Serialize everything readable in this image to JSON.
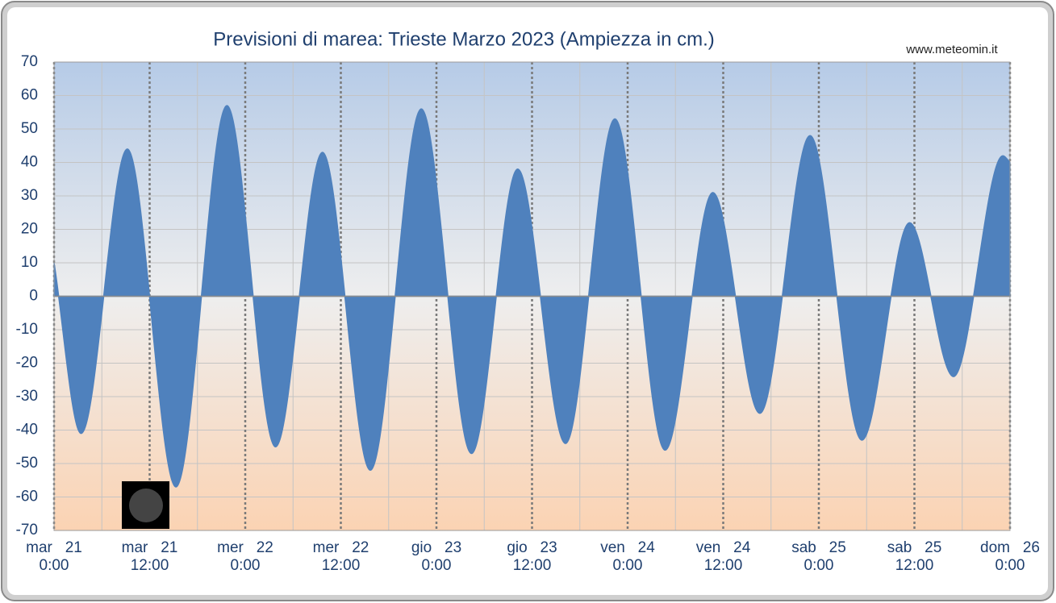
{
  "chart_data": {
    "type": "area",
    "title": "Previsioni di marea: Trieste Marzo 2023 (Ampiezza in cm.)",
    "source": "www.meteomin.it",
    "x": [
      0,
      3.4,
      9.2,
      15.3,
      21.7,
      27.8,
      33.7,
      39.7,
      46.1,
      52.4,
      58.2,
      64.2,
      70.4,
      76.7,
      82.7,
      88.6,
      94.9,
      101.4,
      107.4,
      112.9,
      119.1,
      120
    ],
    "values": [
      10,
      -41,
      44,
      -57,
      57,
      -45,
      43,
      -52,
      56,
      -47,
      38,
      -44,
      53,
      -46,
      31,
      -35,
      48,
      -43,
      22,
      -24,
      42,
      40
    ],
    "color": "#4f81bd",
    "xlim": [
      0,
      120
    ],
    "xticks": [
      {
        "value": 0,
        "label": "mar   21\n0:00"
      },
      {
        "value": 12,
        "label": "mar   21\n12:00"
      },
      {
        "value": 24,
        "label": "mer   22\n0:00"
      },
      {
        "value": 36,
        "label": "mer   22\n12:00"
      },
      {
        "value": 48,
        "label": "gio   23\n0:00"
      },
      {
        "value": 60,
        "label": "gio   23\n12:00"
      },
      {
        "value": 72,
        "label": "ven   24\n0:00"
      },
      {
        "value": 84,
        "label": "ven   24\n12:00"
      },
      {
        "value": 96,
        "label": "sab   25\n0:00"
      },
      {
        "value": 108,
        "label": "sab   25\n12:00"
      },
      {
        "value": 120,
        "label": "dom   26\n0:00"
      }
    ],
    "xminorticks": [
      6,
      18,
      30,
      42,
      54,
      66,
      78,
      90,
      102,
      114
    ],
    "ylim": [
      -70,
      70
    ],
    "yticks": [
      -70,
      -60,
      -50,
      -40,
      -30,
      -20,
      -10,
      0,
      10,
      20,
      30,
      40,
      50,
      60,
      70
    ],
    "grid": true
  }
}
